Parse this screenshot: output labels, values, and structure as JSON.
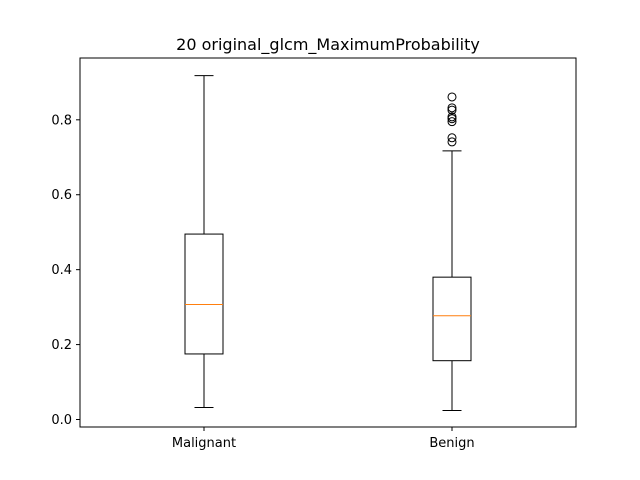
{
  "chart_data": {
    "type": "box",
    "title": "20 original_glcm_MaximumProbability",
    "xlabel": "",
    "ylabel": "",
    "categories": [
      "Malignant",
      "Benign"
    ],
    "ylim": [
      -0.02,
      0.965
    ],
    "yticks": [
      0.0,
      0.2,
      0.4,
      0.6,
      0.8
    ],
    "ytick_labels": [
      "0.0",
      "0.2",
      "0.4",
      "0.6",
      "0.8"
    ],
    "grid": false,
    "boxes": [
      {
        "name": "Malignant",
        "whisker_low": 0.032,
        "q1": 0.175,
        "median": 0.307,
        "q3": 0.495,
        "whisker_high": 0.918,
        "outliers": []
      },
      {
        "name": "Benign",
        "whisker_low": 0.024,
        "q1": 0.157,
        "median": 0.277,
        "q3": 0.38,
        "whisker_high": 0.717,
        "outliers": [
          0.741,
          0.752,
          0.795,
          0.803,
          0.808,
          0.826,
          0.832,
          0.861
        ]
      }
    ],
    "colors": {
      "box": "#000000",
      "median": "#ff7f0e",
      "outlier_edge": "#000000"
    }
  }
}
